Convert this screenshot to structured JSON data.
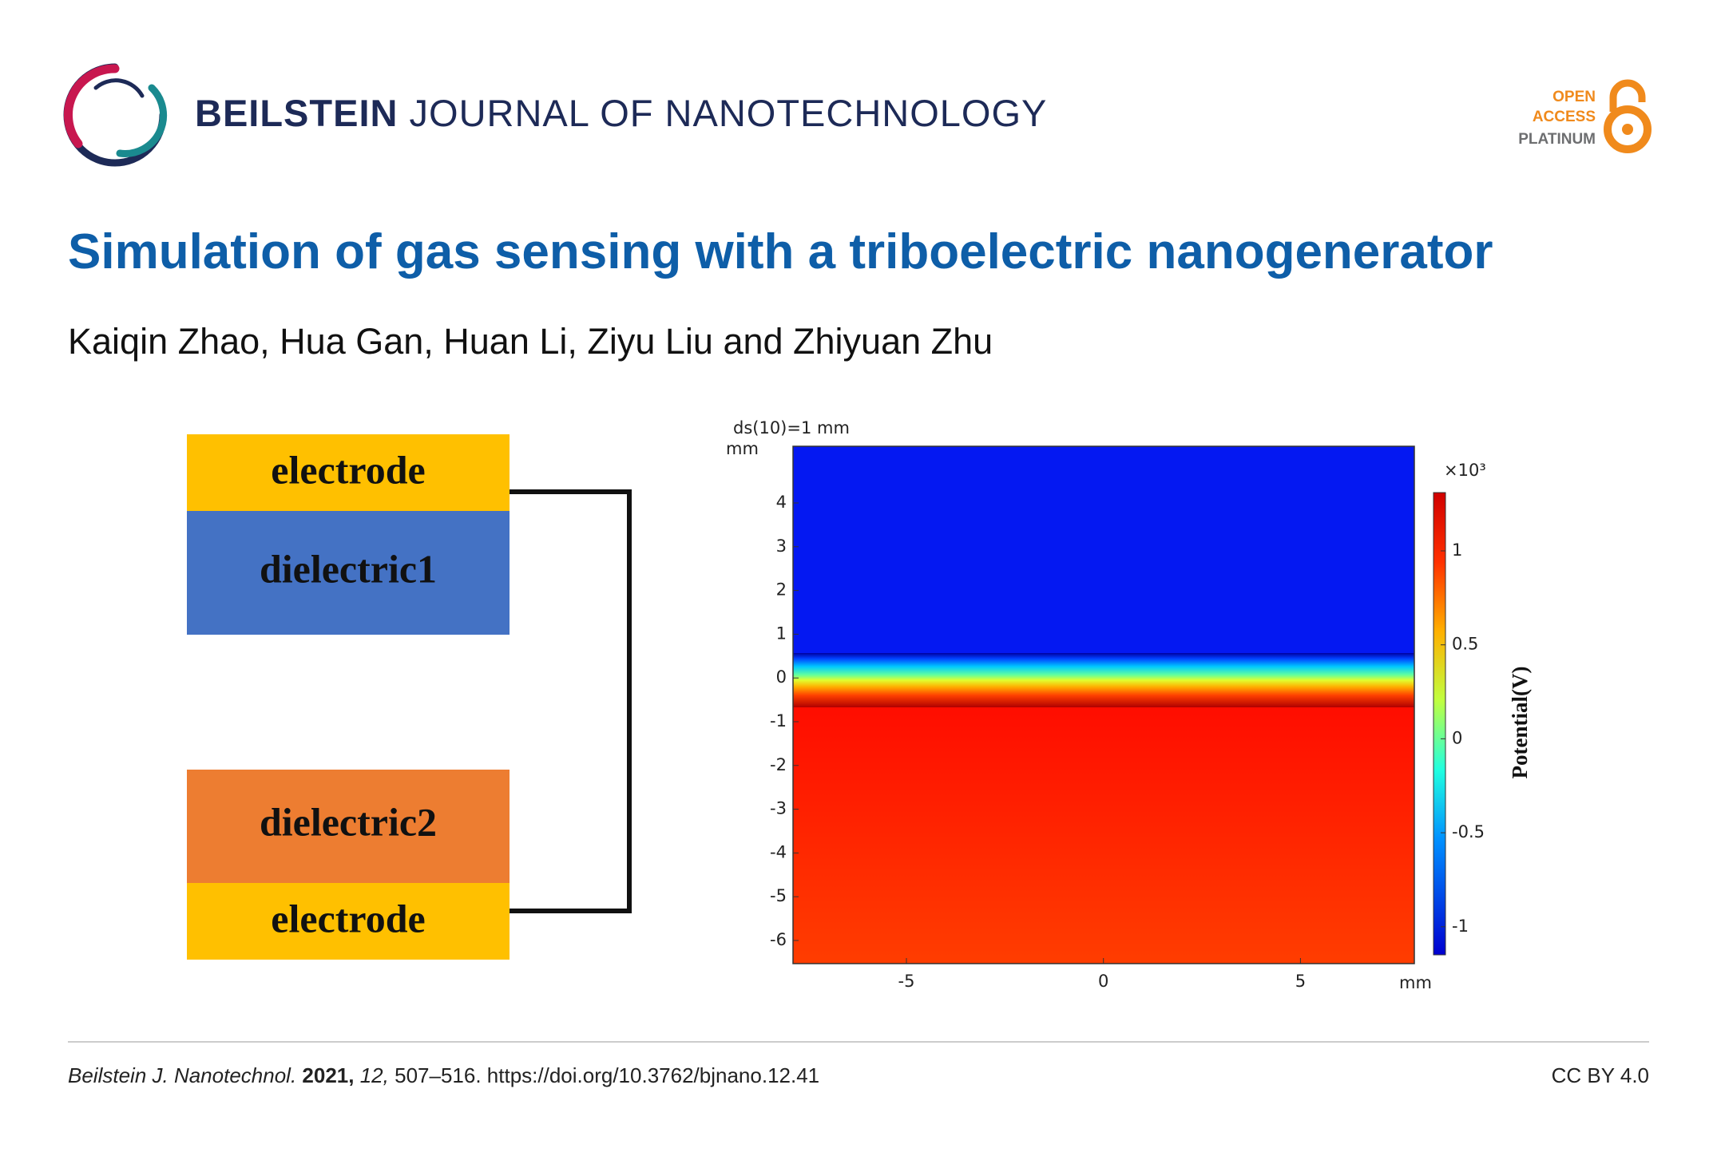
{
  "header": {
    "journal_bold": "BEILSTEIN",
    "journal_rest": "JOURNAL OF NANOTECHNOLOGY",
    "badge": [
      "OPEN",
      "ACCESS",
      "PLATINUM"
    ]
  },
  "article": {
    "title": "Simulation of gas sensing with a triboelectric nanogenerator",
    "authors": "Kaiqin Zhao, Hua Gan, Huan Li, Ziyu Liu and Zhiyuan Zhu"
  },
  "figure": {
    "diagram": {
      "blocks": [
        "electrode",
        "dielectric1",
        "dielectric2",
        "electrode"
      ]
    },
    "plot": {
      "scale_note": "ds(10)=1 mm",
      "y_unit": "mm",
      "x_unit": "mm",
      "yticks": [
        "4",
        "3",
        "2",
        "1",
        "0",
        "-1",
        "-2",
        "-3",
        "-4",
        "-5",
        "-6"
      ],
      "xticks": [
        "-5",
        "0",
        "5"
      ],
      "colorbar_multiplier": "×10³",
      "colorbar_ticks": [
        "1",
        "0.5",
        "0",
        "-0.5",
        "-1"
      ],
      "colorbar_label": "Potential(V)"
    }
  },
  "footer": {
    "journal": "Beilstein J. Nanotechnol.",
    "year": "2021,",
    "volume": "12,",
    "pages": "507–516.",
    "doi": "https://doi.org/10.3762/bjnano.12.41",
    "license": "CC BY 4.0"
  }
}
